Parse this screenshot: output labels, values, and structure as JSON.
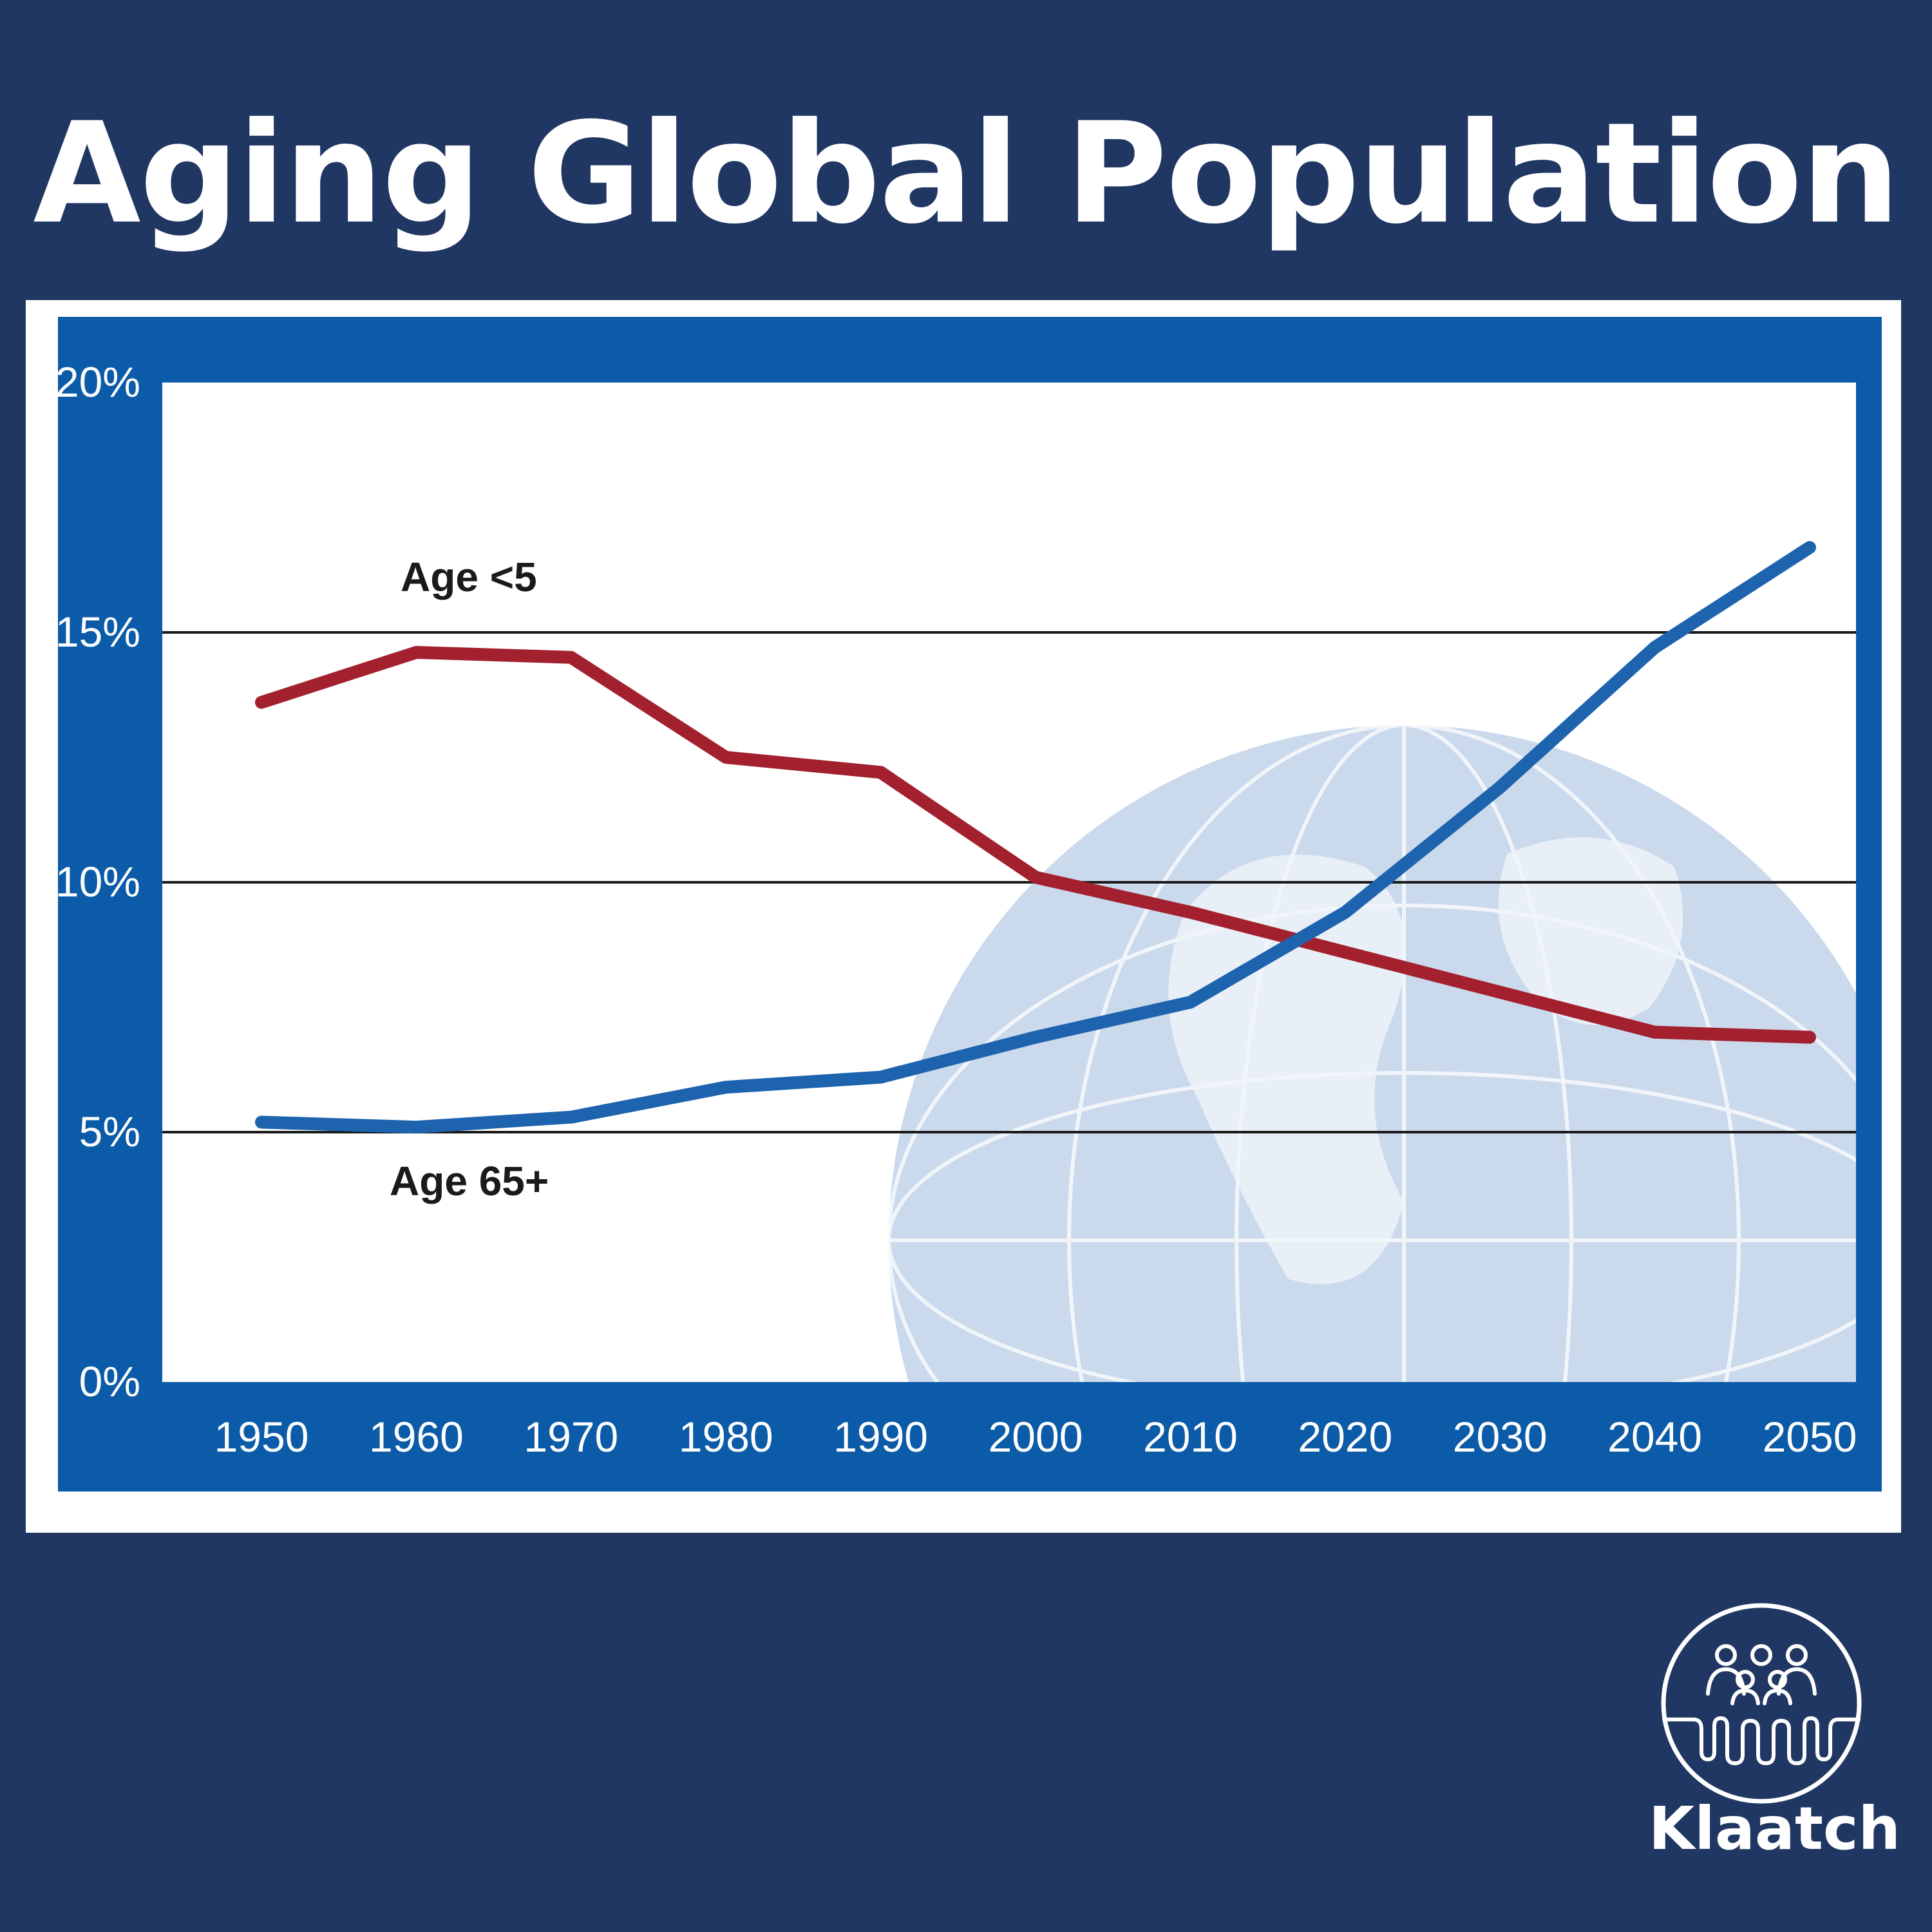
{
  "page": {
    "title": "Aging Global Population"
  },
  "brand": {
    "name": "Klaatch",
    "icon": "people-group-icon"
  },
  "colors": {
    "background": "#213763",
    "chart_frame": "#0b5ba8",
    "plot_background": "#ffffff",
    "globe": "#b9cbe3",
    "series_under5": "#a3212f",
    "series_65plus": "#1e63ae",
    "gridline": "#1a1a1a"
  },
  "chart_data": {
    "type": "line",
    "title": "",
    "xlabel": "",
    "ylabel": "",
    "x": [
      1950,
      1960,
      1970,
      1980,
      1990,
      2000,
      2010,
      2020,
      2030,
      2040,
      2050
    ],
    "xticks": [
      "1950",
      "1960",
      "1970",
      "1980",
      "1990",
      "2000",
      "2010",
      "2020",
      "2030",
      "2040",
      "2050"
    ],
    "ylim": [
      0,
      20
    ],
    "yticks": [
      "0%",
      "5%",
      "10%",
      "15%",
      "20%"
    ],
    "ytick_values": [
      0,
      5,
      10,
      15,
      20
    ],
    "gridlines": [
      5,
      10,
      15
    ],
    "grid": true,
    "series": [
      {
        "name": "Age <5",
        "color": "#a3212f",
        "values": [
          13.6,
          14.6,
          14.5,
          12.5,
          12.2,
          10.1,
          9.4,
          8.6,
          7.8,
          7.0,
          6.9
        ]
      },
      {
        "name": "Age 65+",
        "color": "#1e63ae",
        "values": [
          5.2,
          5.1,
          5.3,
          5.9,
          6.1,
          6.9,
          7.6,
          9.4,
          11.9,
          14.7,
          16.7
        ]
      }
    ]
  }
}
